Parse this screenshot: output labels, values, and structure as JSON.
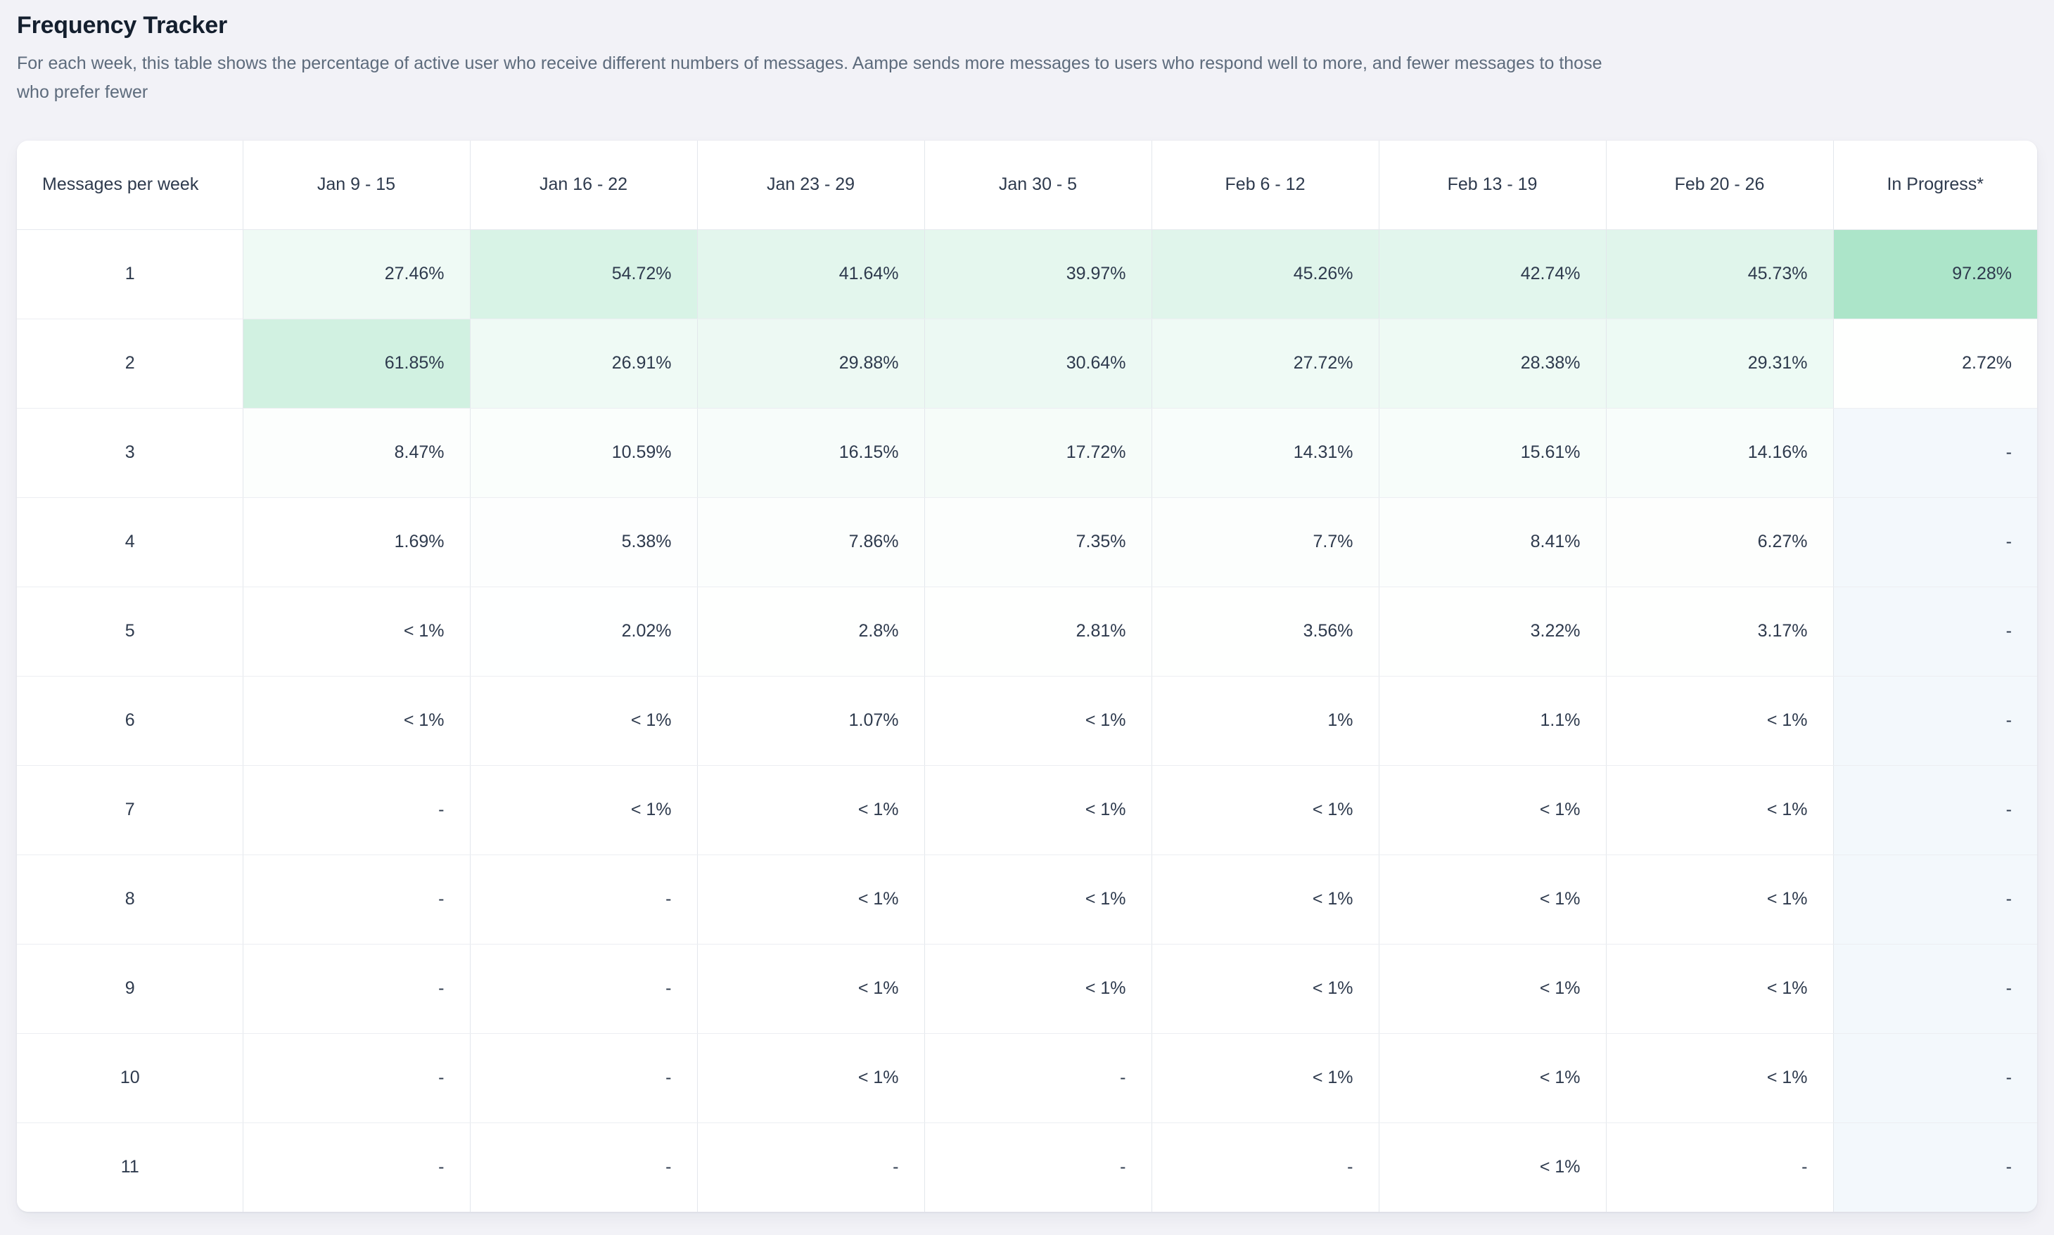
{
  "page": {
    "background_color": "#f2f2f7"
  },
  "header": {
    "title": "Frequency Tracker",
    "subtitle": "For each week, this table shows the percentage of active user who receive different numbers of messages. Aampe sends more messages to users who respond well to more, and fewer messages to those who prefer fewer"
  },
  "table": {
    "heat_base_color": "#62ce9a",
    "in_progress_empty_color": "#f3f8fc",
    "text_color": "#2e3a4d",
    "columns": [
      "Messages per week",
      "Jan 9 - 15",
      "Jan 16 - 22",
      "Jan 23 - 29",
      "Jan 30 - 5",
      "Feb 6 - 12",
      "Feb 13 - 19",
      "Feb 20 - 26",
      "In Progress*"
    ],
    "rows": [
      {
        "label": "1",
        "cells": [
          "27.46%",
          "54.72%",
          "41.64%",
          "39.97%",
          "45.26%",
          "42.74%",
          "45.73%",
          "97.28%"
        ]
      },
      {
        "label": "2",
        "cells": [
          "61.85%",
          "26.91%",
          "29.88%",
          "30.64%",
          "27.72%",
          "28.38%",
          "29.31%",
          "2.72%"
        ]
      },
      {
        "label": "3",
        "cells": [
          "8.47%",
          "10.59%",
          "16.15%",
          "17.72%",
          "14.31%",
          "15.61%",
          "14.16%",
          "-"
        ]
      },
      {
        "label": "4",
        "cells": [
          "1.69%",
          "5.38%",
          "7.86%",
          "7.35%",
          "7.7%",
          "8.41%",
          "6.27%",
          "-"
        ]
      },
      {
        "label": "5",
        "cells": [
          "< 1%",
          "2.02%",
          "2.8%",
          "2.81%",
          "3.56%",
          "3.22%",
          "3.17%",
          "-"
        ]
      },
      {
        "label": "6",
        "cells": [
          "< 1%",
          "< 1%",
          "1.07%",
          "< 1%",
          "1%",
          "1.1%",
          "< 1%",
          "-"
        ]
      },
      {
        "label": "7",
        "cells": [
          "-",
          "< 1%",
          "< 1%",
          "< 1%",
          "< 1%",
          "< 1%",
          "< 1%",
          "-"
        ]
      },
      {
        "label": "8",
        "cells": [
          "-",
          "-",
          "< 1%",
          "< 1%",
          "< 1%",
          "< 1%",
          "< 1%",
          "-"
        ]
      },
      {
        "label": "9",
        "cells": [
          "-",
          "-",
          "< 1%",
          "< 1%",
          "< 1%",
          "< 1%",
          "< 1%",
          "-"
        ]
      },
      {
        "label": "10",
        "cells": [
          "-",
          "-",
          "< 1%",
          "-",
          "< 1%",
          "< 1%",
          "< 1%",
          "-"
        ]
      },
      {
        "label": "11",
        "cells": [
          "-",
          "-",
          "-",
          "-",
          "-",
          "< 1%",
          "-",
          "-"
        ]
      }
    ]
  }
}
